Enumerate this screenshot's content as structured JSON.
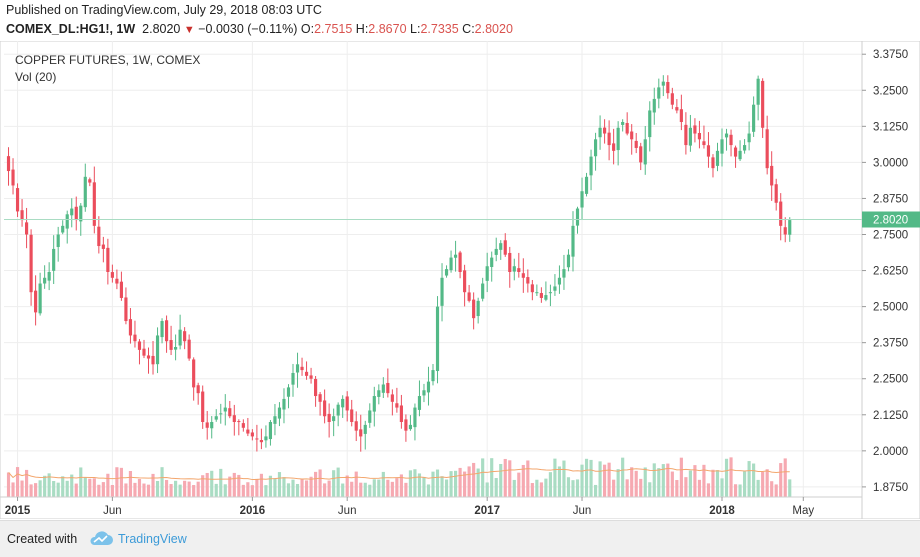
{
  "header": {
    "published": "Published on TradingView.com, July 29, 2018 08:03 UTC",
    "symbol": "COMEX_DL:HG1!, 1W",
    "last": "2.8020",
    "change": "−0.0030 (−0.11%)",
    "o_label": "O:",
    "o_value": "2.7515",
    "h_label": "H:",
    "h_value": "2.8670",
    "l_label": "L:",
    "l_value": "2.7335",
    "c_label": "C:",
    "c_value": "2.8020"
  },
  "footer": {
    "created_with": "Created with",
    "brand": "TradingView"
  },
  "colors": {
    "up": "#53b987",
    "down": "#eb4d5c",
    "vol_up": "#a9dcc3",
    "vol_down": "#f6a9b1",
    "ma": "#f3a66d",
    "last_line": "#a9dcc3",
    "last_tag": "#53b987"
  },
  "chart_data": {
    "type": "candlestick",
    "title": "COPPER FUTURES, 1W, COMEX",
    "volume_label": "Vol (20)",
    "ylim": [
      1.84,
      3.4
    ],
    "y_ticks": [
      1.875,
      2.0,
      2.125,
      2.25,
      2.375,
      2.5,
      2.625,
      2.75,
      2.875,
      3.0,
      3.125,
      3.25,
      3.375
    ],
    "y_tick_labels": [
      "1.8750",
      "2.0000",
      "2.1250",
      "2.2500",
      "2.3750",
      "2.5000",
      "2.6250",
      "2.7500",
      "2.8750",
      "3.0000",
      "3.1250",
      "3.2500",
      "3.3750"
    ],
    "last_price": 2.802,
    "last_price_label": "2.8020",
    "x_ticks": [
      {
        "label": "2015",
        "week": 3
      },
      {
        "label": "Jun",
        "week": 24
      },
      {
        "label": "2016",
        "week": 55
      },
      {
        "label": "Jun",
        "week": 76
      },
      {
        "label": "2017",
        "week": 107
      },
      {
        "label": "Jun",
        "week": 128
      },
      {
        "label": "2018",
        "week": 159
      },
      {
        "label": "May",
        "week": 177
      }
    ],
    "x_range_weeks": [
      0,
      190
    ],
    "weekly_close_path": [
      2.97,
      2.92,
      2.83,
      2.8,
      2.75,
      2.55,
      2.48,
      2.58,
      2.6,
      2.62,
      2.7,
      2.75,
      2.78,
      2.82,
      2.84,
      2.8,
      2.85,
      2.95,
      2.93,
      2.78,
      2.71,
      2.7,
      2.62,
      2.6,
      2.58,
      2.53,
      2.45,
      2.4,
      2.38,
      2.35,
      2.33,
      2.32,
      2.3,
      2.4,
      2.45,
      2.38,
      2.35,
      2.36,
      2.42,
      2.38,
      2.32,
      2.22,
      2.2,
      2.1,
      2.08,
      2.1,
      2.12,
      2.13,
      2.15,
      2.12,
      2.1,
      2.1,
      2.08,
      2.06,
      2.05,
      2.04,
      2.03,
      2.05,
      2.1,
      2.12,
      2.15,
      2.18,
      2.22,
      2.27,
      2.3,
      2.28,
      2.26,
      2.25,
      2.19,
      2.17,
      2.12,
      2.1,
      2.12,
      2.16,
      2.18,
      2.14,
      2.1,
      2.07,
      2.05,
      2.09,
      2.14,
      2.19,
      2.21,
      2.23,
      2.2,
      2.17,
      2.15,
      2.1,
      2.07,
      2.09,
      2.15,
      2.19,
      2.21,
      2.24,
      2.28,
      2.5,
      2.6,
      2.63,
      2.67,
      2.68,
      2.62,
      2.55,
      2.52,
      2.46,
      2.52,
      2.58,
      2.64,
      2.67,
      2.7,
      2.72,
      2.68,
      2.62,
      2.64,
      2.62,
      2.6,
      2.58,
      2.55,
      2.55,
      2.53,
      2.54,
      2.55,
      2.57,
      2.6,
      2.63,
      2.68,
      2.78,
      2.84,
      2.9,
      2.95,
      3.02,
      3.08,
      3.12,
      3.1,
      3.06,
      3.04,
      3.12,
      3.14,
      3.1,
      3.08,
      3.05,
      3.0,
      3.08,
      3.18,
      3.22,
      3.26,
      3.28,
      3.24,
      3.2,
      3.18,
      3.14,
      3.06,
      3.12,
      3.1,
      3.08,
      3.06,
      3.02,
      2.98,
      3.04,
      3.08,
      3.1,
      3.06,
      3.02,
      3.04,
      3.06,
      3.1,
      3.2,
      3.29,
      3.12,
      2.98,
      2.92,
      2.86,
      2.78,
      2.75,
      2.8
    ]
  }
}
